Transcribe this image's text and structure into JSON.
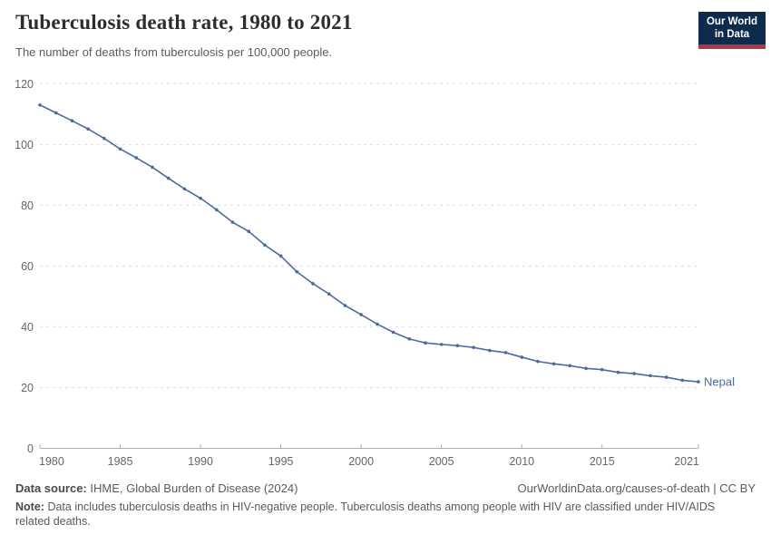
{
  "header": {
    "title": "Tuberculosis death rate, 1980 to 2021",
    "subtitle": "The number of deaths from tuberculosis per 100,000 people.",
    "logo_line1": "Our World",
    "logo_line2": "in Data",
    "logo_colors": {
      "navy": "#0d2b4c",
      "red": "#b03648"
    }
  },
  "chart_data": {
    "type": "line",
    "title": "Tuberculosis death rate, 1980 to 2021",
    "xlabel": "",
    "ylabel": "",
    "xlim": [
      1980,
      2021
    ],
    "ylim": [
      0,
      120
    ],
    "grid": "horizontal-dashed",
    "legend_position": "end-of-line-label",
    "x_ticks": [
      1980,
      1985,
      1990,
      1995,
      2000,
      2005,
      2010,
      2015,
      2021
    ],
    "y_ticks": [
      0,
      20,
      40,
      60,
      80,
      100,
      120
    ],
    "x": [
      1980,
      1981,
      1982,
      1983,
      1984,
      1985,
      1986,
      1987,
      1988,
      1989,
      1990,
      1991,
      1992,
      1993,
      1994,
      1995,
      1996,
      1997,
      1998,
      1999,
      2000,
      2001,
      2002,
      2003,
      2004,
      2005,
      2006,
      2007,
      2008,
      2009,
      2010,
      2011,
      2012,
      2013,
      2014,
      2015,
      2016,
      2017,
      2018,
      2019,
      2020,
      2021
    ],
    "series": [
      {
        "name": "Nepal",
        "color": "#4C6A9E",
        "values": [
          113,
          110.4,
          107.8,
          105.1,
          102,
          98.5,
          95.6,
          92.5,
          88.9,
          85.4,
          82.3,
          78.5,
          74.4,
          71.4,
          66.9,
          63.3,
          58.1,
          54.2,
          50.8,
          47,
          44,
          40.9,
          38.2,
          36,
          34.7,
          34.2,
          33.8,
          33.2,
          32.2,
          31.5,
          30,
          28.6,
          27.8,
          27.2,
          26.3,
          25.9,
          25,
          24.6,
          23.9,
          23.4,
          22.4,
          21.9
        ]
      }
    ],
    "axis_colors": {
      "grid": "#dedede",
      "axis": "#b0b0b0",
      "tick_label": "#666666"
    }
  },
  "footer": {
    "source_label": "Data source:",
    "source_value": "IHME, Global Burden of Disease (2024)",
    "link": "OurWorldinData.org/causes-of-death | CC BY",
    "note_label": "Note:",
    "note_value": "Data includes tuberculosis deaths in HIV-negative people. Tuberculosis deaths among people with HIV are classified under HIV/AIDS related deaths."
  }
}
